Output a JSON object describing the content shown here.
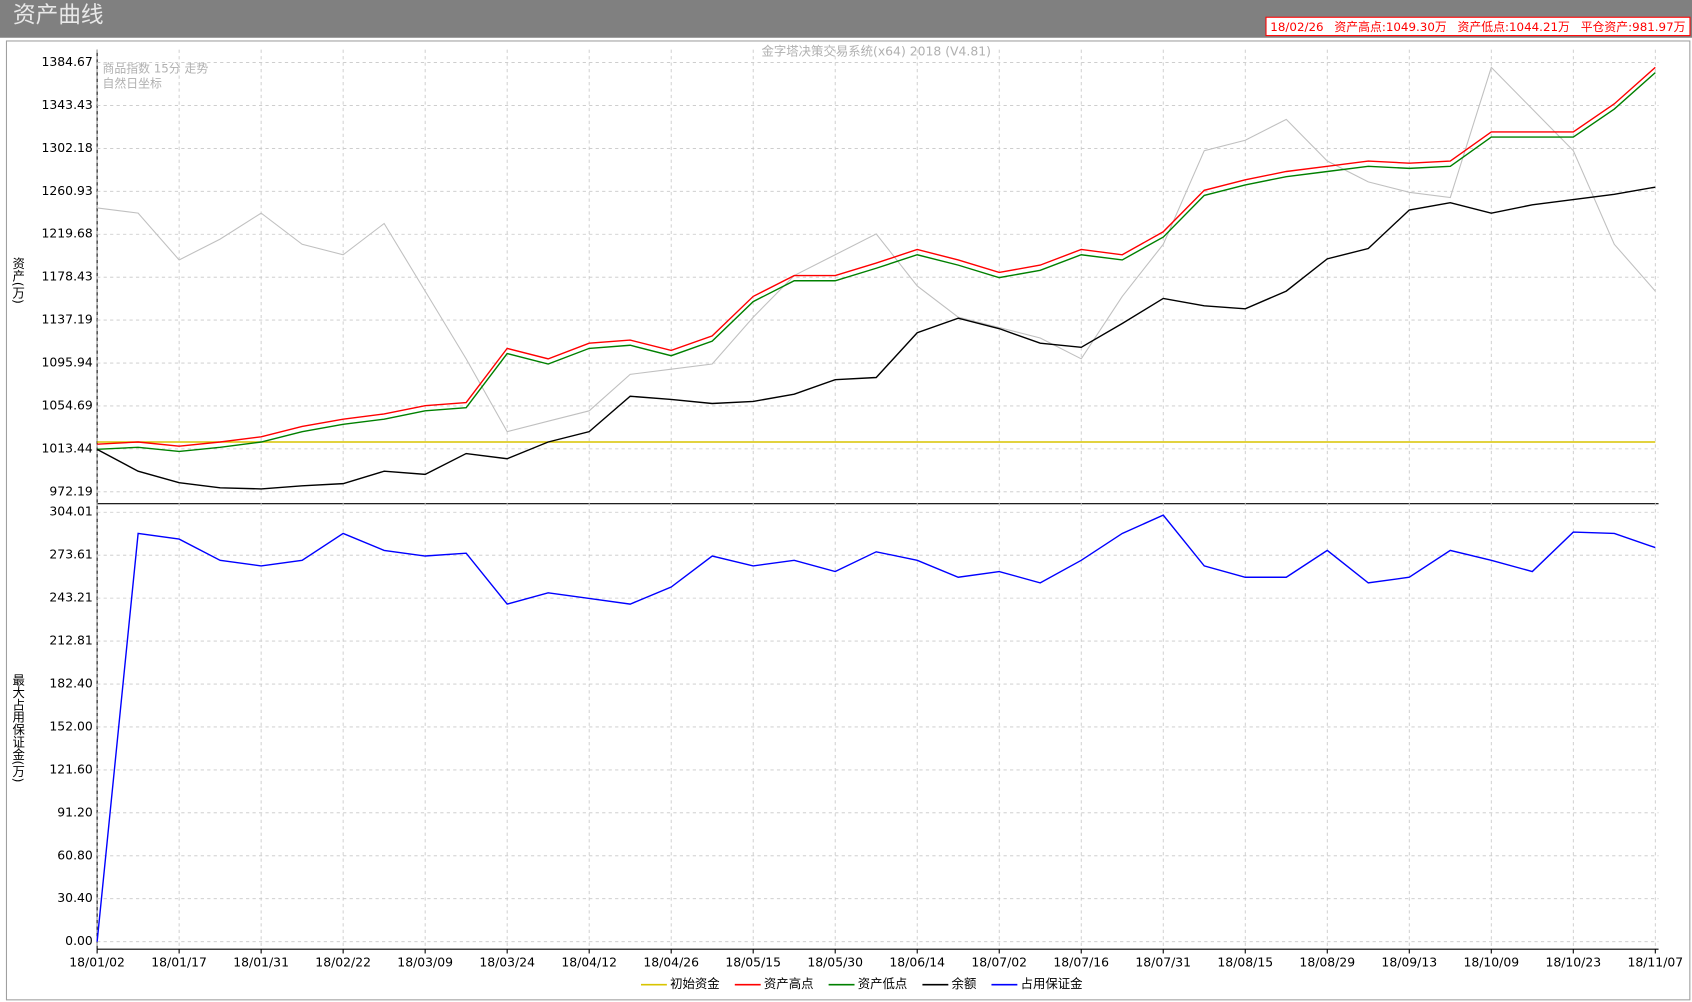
{
  "window_title": "资产曲线",
  "info": [
    "18/02/26",
    "资产高点:1049.30万",
    "资产低点:1044.21万",
    "平仓资产:981.97万"
  ],
  "chart_data": {
    "type": "line",
    "title": "金字塔决策交易系统(x64) 2018 (V4.81)",
    "annotations": [
      "商品指数 15分 走势",
      "自然日坐标"
    ],
    "ylabel": "资产(万)",
    "y2label": "最大占用保证金(万)",
    "grid": true,
    "categories": [
      "18/01/02",
      null,
      "18/01/17",
      null,
      "18/01/31",
      null,
      "18/02/22",
      null,
      "18/03/09",
      null,
      "18/03/24",
      null,
      "18/04/12",
      null,
      "18/04/26",
      null,
      "18/05/15",
      null,
      "18/05/30",
      null,
      "18/06/14",
      null,
      "18/07/02",
      null,
      "18/07/16",
      null,
      "18/07/31",
      null,
      "18/08/15",
      null,
      "18/08/29",
      null,
      "18/09/13",
      null,
      "18/10/09",
      null,
      "18/10/23",
      null,
      "18/11/07"
    ],
    "ylim": [
      961.8,
      1397.1
    ],
    "yticks": [
      972.19,
      1013.44,
      1054.69,
      1095.94,
      1137.19,
      1178.43,
      1219.68,
      1260.93,
      1302.18,
      1343.43,
      1384.67
    ],
    "y2lim": [
      -5.3,
      309.3
    ],
    "y2ticks": [
      {
        "value": 0,
        "label": "0.00"
      },
      {
        "value": 30.4,
        "label": "30.40"
      },
      {
        "value": 60.8,
        "label": "60.80"
      },
      {
        "value": 91.2,
        "label": "91.20"
      },
      {
        "value": 121.6,
        "label": "121.60"
      },
      {
        "value": 152,
        "label": "152.00"
      },
      {
        "value": 182.4,
        "label": "182.40"
      },
      212.81,
      243.21,
      273.61,
      304.01
    ],
    "index_series": {
      "name": "商品指数 15分 走势",
      "color": "#c0c0c0",
      "values": [
        1245,
        1240,
        1195,
        1215,
        1240,
        1210,
        1200,
        1230,
        1165,
        1100,
        1030,
        1040,
        1050,
        1085,
        1090,
        1095,
        1140,
        1180,
        1200,
        1220,
        1170,
        1140,
        1130,
        1120,
        1100,
        1160,
        1210,
        1300,
        1310,
        1330,
        1290,
        1270,
        1260,
        1255,
        1380,
        1340,
        1300,
        1210,
        1165
      ]
    },
    "series": [
      {
        "name": "初始资金",
        "color": "#d8c400",
        "values": [
          1020,
          1020,
          1020,
          1020,
          1020,
          1020,
          1020,
          1020,
          1020,
          1020,
          1020,
          1020,
          1020,
          1020,
          1020,
          1020,
          1020,
          1020,
          1020,
          1020,
          1020,
          1020,
          1020,
          1020,
          1020,
          1020,
          1020,
          1020,
          1020,
          1020,
          1020,
          1020,
          1020,
          1020,
          1020,
          1020,
          1020,
          1020,
          1020
        ]
      },
      {
        "name": "资产高点",
        "color": "#ff0000",
        "values": [
          1018,
          1020,
          1016,
          1020,
          1025,
          1035,
          1042,
          1047,
          1055,
          1058,
          1110,
          1100,
          1115,
          1118,
          1108,
          1122,
          1160,
          1180,
          1180,
          1192,
          1205,
          1195,
          1183,
          1190,
          1205,
          1200,
          1222,
          1262,
          1272,
          1280,
          1285,
          1290,
          1288,
          1290,
          1318,
          1318,
          1318,
          1345,
          1380
        ]
      },
      {
        "name": "资产低点",
        "color": "#008000",
        "values": [
          1013,
          1015,
          1011,
          1015,
          1020,
          1030,
          1037,
          1042,
          1050,
          1053,
          1105,
          1095,
          1110,
          1113,
          1103,
          1117,
          1155,
          1175,
          1175,
          1187,
          1200,
          1190,
          1178,
          1185,
          1200,
          1195,
          1217,
          1257,
          1267,
          1275,
          1280,
          1285,
          1283,
          1285,
          1313,
          1313,
          1313,
          1340,
          1375
        ]
      },
      {
        "name": "余额",
        "color": "#000000",
        "values": [
          1013,
          992,
          981,
          976,
          975,
          978,
          980,
          992,
          989,
          1009,
          1004,
          1020,
          1030,
          1064,
          1061,
          1057,
          1059,
          1066,
          1080,
          1082,
          1125,
          1139,
          1129,
          1115,
          1111,
          1134,
          1158,
          1151,
          1148,
          1165,
          1196,
          1206,
          1243,
          1250,
          1240,
          1248,
          1253,
          1258,
          1265
        ]
      },
      {
        "name": "占用保证金",
        "color": "#0000ff",
        "axis": "y2",
        "values": [
          0,
          289,
          285,
          270,
          266,
          270,
          289,
          277,
          273,
          275,
          239,
          247,
          243,
          239,
          251,
          273,
          266,
          270,
          262,
          276,
          270,
          258,
          262,
          254,
          270,
          289,
          302,
          266,
          258,
          258,
          277,
          254,
          258,
          277,
          270,
          262,
          290,
          289,
          279
        ]
      }
    ]
  }
}
